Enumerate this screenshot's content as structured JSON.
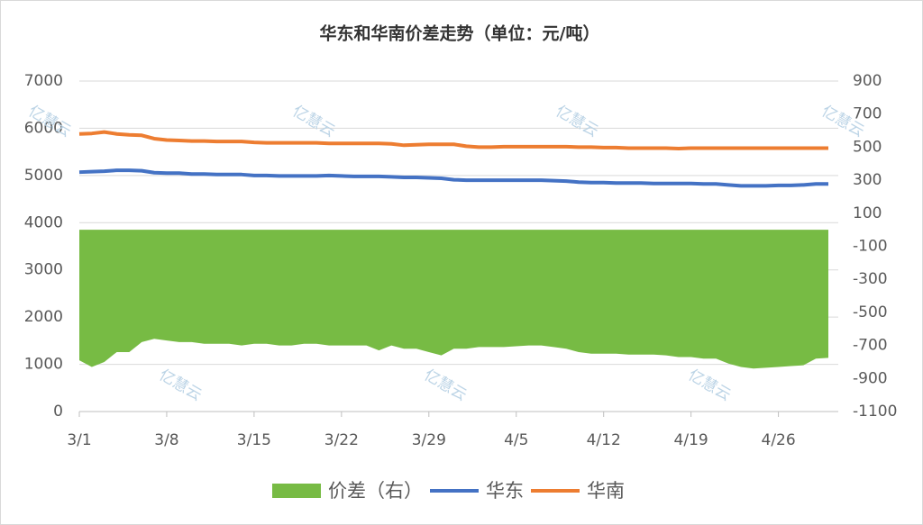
{
  "chart_data": {
    "type": "line",
    "title": "华东和华南价差走势（单位：元/吨）",
    "watermark": "亿慧云",
    "categories": [
      "3/1",
      null,
      null,
      null,
      null,
      null,
      null,
      "3/8",
      null,
      null,
      null,
      null,
      null,
      null,
      "3/15",
      null,
      null,
      null,
      null,
      null,
      null,
      "3/22",
      null,
      null,
      null,
      null,
      null,
      null,
      "3/29",
      null,
      null,
      null,
      null,
      null,
      null,
      "4/5",
      null,
      null,
      null,
      null,
      null,
      null,
      "4/12",
      null,
      null,
      null,
      null,
      null,
      null,
      "4/19",
      null,
      null,
      null,
      null,
      null,
      null,
      "4/26",
      null,
      null,
      null,
      null
    ],
    "series": [
      {
        "name": "价差（右）",
        "color": "#77bb44",
        "axis": "y2",
        "kind": "area",
        "values": [
          -790,
          -830,
          -800,
          -740,
          -740,
          -680,
          -660,
          -670,
          -680,
          -680,
          -690,
          -690,
          -690,
          -700,
          -690,
          -690,
          -700,
          -700,
          -690,
          -690,
          -700,
          -700,
          -700,
          -700,
          -730,
          -700,
          -720,
          -720,
          -740,
          -760,
          -720,
          -720,
          -710,
          -710,
          -710,
          -705,
          -700,
          -700,
          -710,
          -720,
          -740,
          -750,
          -750,
          -750,
          -755,
          -755,
          -755,
          -760,
          -770,
          -770,
          -780,
          -780,
          -810,
          -830,
          -840,
          -835,
          -830,
          -825,
          -820,
          -780,
          -775
        ]
      },
      {
        "name": "华东",
        "color": "#4472c4",
        "kind": "line",
        "values": [
          5070,
          5080,
          5090,
          5110,
          5110,
          5100,
          5060,
          5050,
          5050,
          5030,
          5030,
          5020,
          5020,
          5020,
          5000,
          5000,
          4990,
          4990,
          4990,
          4990,
          5000,
          4990,
          4980,
          4980,
          4980,
          4970,
          4960,
          4960,
          4950,
          4940,
          4910,
          4900,
          4900,
          4900,
          4900,
          4900,
          4900,
          4900,
          4890,
          4880,
          4860,
          4850,
          4850,
          4840,
          4840,
          4840,
          4830,
          4830,
          4830,
          4830,
          4820,
          4820,
          4800,
          4780,
          4780,
          4780,
          4790,
          4790,
          4800,
          4820,
          4820
        ]
      },
      {
        "name": "华南",
        "color": "#ed7d31",
        "kind": "line",
        "values": [
          5880,
          5890,
          5920,
          5880,
          5860,
          5850,
          5780,
          5750,
          5740,
          5730,
          5730,
          5720,
          5720,
          5720,
          5700,
          5690,
          5690,
          5690,
          5690,
          5690,
          5680,
          5680,
          5680,
          5680,
          5680,
          5670,
          5640,
          5650,
          5660,
          5660,
          5660,
          5620,
          5600,
          5600,
          5610,
          5610,
          5610,
          5610,
          5610,
          5610,
          5600,
          5600,
          5590,
          5590,
          5580,
          5580,
          5580,
          5580,
          5570,
          5580,
          5580,
          5580,
          5580,
          5580,
          5580,
          5580,
          5580,
          5580,
          5580,
          5580,
          5580
        ]
      }
    ],
    "ylim": [
      0,
      7000
    ],
    "yticks": [
      0,
      1000,
      2000,
      3000,
      4000,
      5000,
      6000,
      7000
    ],
    "y2lim": [
      -1100,
      900
    ],
    "y2ticks": [
      -1100,
      -900,
      -700,
      -500,
      -300,
      -100,
      100,
      300,
      500,
      700,
      900
    ],
    "grid": true,
    "legend": "bottom"
  }
}
